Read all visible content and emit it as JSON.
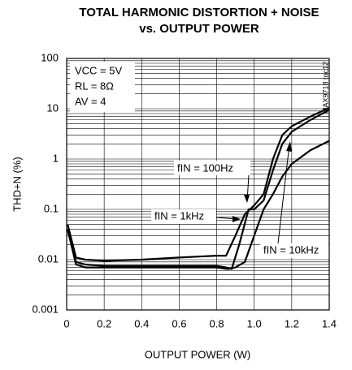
{
  "chart_data": {
    "type": "line",
    "title": "TOTAL HARMONIC DISTORTION + NOISE",
    "subtitle": "vs. OUTPUT POWER",
    "xlabel": "OUTPUT POWER (W)",
    "ylabel": "THD+N (%)",
    "side_note": "MAX9718 toc12",
    "conditions": [
      "VCC = 5V",
      "RL = 8Ω",
      "AV = 4"
    ],
    "log_y": true,
    "grid": true,
    "minor_grid": true,
    "xlim": [
      0,
      1.4
    ],
    "xticks": [
      0,
      0.2,
      0.4,
      0.6,
      0.8,
      {
        "value": 1,
        "label": "1.0"
      },
      1.2,
      1.4
    ],
    "ylim": [
      0.001,
      100
    ],
    "yticks": [
      0.001,
      0.01,
      0.1,
      1,
      10,
      100
    ],
    "series": [
      {
        "name": "fIN = 100Hz",
        "color": "#000000",
        "x": [
          0.005,
          0.05,
          0.1,
          0.2,
          0.4,
          0.6,
          0.8,
          0.85,
          0.88,
          0.92,
          0.97,
          1.0,
          1.05,
          1.1,
          1.15,
          1.2,
          1.3,
          1.4
        ],
        "values": [
          0.04,
          0.009,
          0.008,
          0.0075,
          0.0075,
          0.0075,
          0.0075,
          0.007,
          0.0065,
          0.02,
          0.1,
          0.1,
          0.15,
          0.6,
          2,
          3.5,
          6,
          9.5
        ]
      },
      {
        "name": "fIN = 1kHz",
        "color": "#000000",
        "x": [
          0.005,
          0.05,
          0.1,
          0.2,
          0.4,
          0.6,
          0.8,
          0.86,
          0.9,
          0.95,
          1.0,
          1.05,
          1.1,
          1.15,
          1.2,
          1.3,
          1.4
        ],
        "values": [
          0.04,
          0.008,
          0.007,
          0.007,
          0.007,
          0.007,
          0.007,
          0.0065,
          0.007,
          0.009,
          0.03,
          0.1,
          0.2,
          0.45,
          0.8,
          1.5,
          2.3
        ]
      },
      {
        "name": "fIN = 10kHz",
        "color": "#000000",
        "x": [
          0.005,
          0.05,
          0.1,
          0.2,
          0.4,
          0.6,
          0.8,
          0.85,
          0.9,
          0.95,
          1.0,
          1.05,
          1.1,
          1.15,
          1.2,
          1.3,
          1.4
        ],
        "values": [
          0.05,
          0.011,
          0.01,
          0.0095,
          0.01,
          0.011,
          0.012,
          0.012,
          0.03,
          0.08,
          0.12,
          0.2,
          1,
          3,
          4.5,
          7,
          10.5
        ]
      }
    ]
  }
}
